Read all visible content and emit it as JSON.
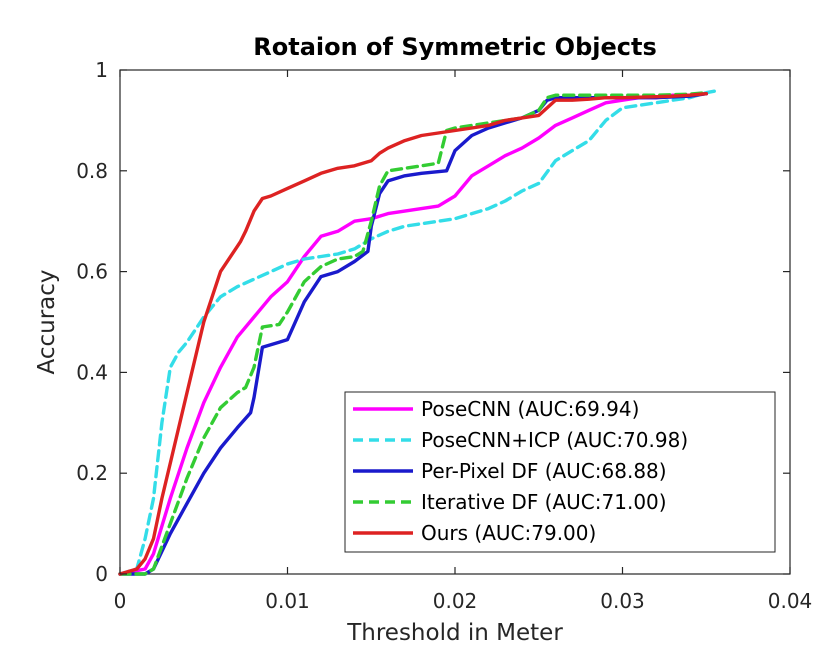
{
  "chart_data": {
    "type": "line",
    "title": "Rotaion of Symmetric Objects",
    "xlabel": "Threshold in Meter",
    "ylabel": "Accuracy",
    "xlim": [
      0,
      0.04
    ],
    "ylim": [
      0,
      1
    ],
    "xticks": [
      0,
      0.01,
      0.02,
      0.03,
      0.04
    ],
    "xtick_labels": [
      "0",
      "0.01",
      "0.02",
      "0.03",
      "0.04"
    ],
    "yticks": [
      0,
      0.2,
      0.4,
      0.6,
      0.8,
      1
    ],
    "ytick_labels": [
      "0",
      "0.2",
      "0.4",
      "0.6",
      "0.8",
      "1"
    ],
    "grid": false,
    "legend_position": "bottom-right",
    "series": [
      {
        "name": "PoseCNN (AUC:69.94)",
        "color": "#ff00ff",
        "dash": "solid",
        "points": [
          [
            0,
            0
          ],
          [
            0.0015,
            0.01
          ],
          [
            0.002,
            0.04
          ],
          [
            0.003,
            0.15
          ],
          [
            0.004,
            0.25
          ],
          [
            0.005,
            0.34
          ],
          [
            0.006,
            0.41
          ],
          [
            0.007,
            0.47
          ],
          [
            0.008,
            0.51
          ],
          [
            0.009,
            0.55
          ],
          [
            0.01,
            0.58
          ],
          [
            0.011,
            0.63
          ],
          [
            0.012,
            0.67
          ],
          [
            0.013,
            0.68
          ],
          [
            0.014,
            0.7
          ],
          [
            0.015,
            0.705
          ],
          [
            0.016,
            0.715
          ],
          [
            0.017,
            0.72
          ],
          [
            0.018,
            0.725
          ],
          [
            0.019,
            0.73
          ],
          [
            0.02,
            0.75
          ],
          [
            0.021,
            0.79
          ],
          [
            0.022,
            0.81
          ],
          [
            0.023,
            0.83
          ],
          [
            0.024,
            0.845
          ],
          [
            0.025,
            0.865
          ],
          [
            0.026,
            0.89
          ],
          [
            0.027,
            0.905
          ],
          [
            0.028,
            0.92
          ],
          [
            0.029,
            0.935
          ],
          [
            0.03,
            0.94
          ],
          [
            0.031,
            0.945
          ],
          [
            0.032,
            0.945
          ],
          [
            0.033,
            0.95
          ],
          [
            0.034,
            0.95
          ],
          [
            0.035,
            0.953
          ]
        ]
      },
      {
        "name": "PoseCNN+ICP (AUC:70.98)",
        "color": "#33dde8",
        "dash": "dashed",
        "points": [
          [
            0,
            0
          ],
          [
            0.001,
            0.01
          ],
          [
            0.0015,
            0.07
          ],
          [
            0.002,
            0.15
          ],
          [
            0.0025,
            0.3
          ],
          [
            0.003,
            0.41
          ],
          [
            0.0035,
            0.44
          ],
          [
            0.004,
            0.46
          ],
          [
            0.005,
            0.51
          ],
          [
            0.006,
            0.55
          ],
          [
            0.007,
            0.57
          ],
          [
            0.008,
            0.585
          ],
          [
            0.009,
            0.6
          ],
          [
            0.01,
            0.615
          ],
          [
            0.011,
            0.625
          ],
          [
            0.012,
            0.63
          ],
          [
            0.013,
            0.635
          ],
          [
            0.014,
            0.645
          ],
          [
            0.015,
            0.665
          ],
          [
            0.016,
            0.68
          ],
          [
            0.017,
            0.69
          ],
          [
            0.018,
            0.695
          ],
          [
            0.019,
            0.7
          ],
          [
            0.02,
            0.705
          ],
          [
            0.021,
            0.715
          ],
          [
            0.022,
            0.725
          ],
          [
            0.023,
            0.74
          ],
          [
            0.024,
            0.76
          ],
          [
            0.025,
            0.775
          ],
          [
            0.026,
            0.82
          ],
          [
            0.027,
            0.84
          ],
          [
            0.028,
            0.86
          ],
          [
            0.029,
            0.9
          ],
          [
            0.03,
            0.925
          ],
          [
            0.031,
            0.93
          ],
          [
            0.032,
            0.935
          ],
          [
            0.033,
            0.94
          ],
          [
            0.034,
            0.945
          ],
          [
            0.035,
            0.955
          ],
          [
            0.0358,
            0.96
          ]
        ]
      },
      {
        "name": "Per-Pixel DF (AUC:68.88)",
        "color": "#1a1acc",
        "dash": "solid",
        "points": [
          [
            0,
            0
          ],
          [
            0.0015,
            0
          ],
          [
            0.002,
            0.01
          ],
          [
            0.003,
            0.08
          ],
          [
            0.004,
            0.14
          ],
          [
            0.005,
            0.2
          ],
          [
            0.006,
            0.25
          ],
          [
            0.007,
            0.29
          ],
          [
            0.0078,
            0.32
          ],
          [
            0.008,
            0.35
          ],
          [
            0.0085,
            0.45
          ],
          [
            0.0095,
            0.46
          ],
          [
            0.01,
            0.465
          ],
          [
            0.011,
            0.54
          ],
          [
            0.012,
            0.59
          ],
          [
            0.013,
            0.6
          ],
          [
            0.014,
            0.62
          ],
          [
            0.0148,
            0.64
          ],
          [
            0.015,
            0.69
          ],
          [
            0.0155,
            0.755
          ],
          [
            0.016,
            0.78
          ],
          [
            0.017,
            0.79
          ],
          [
            0.018,
            0.795
          ],
          [
            0.0195,
            0.8
          ],
          [
            0.02,
            0.84
          ],
          [
            0.021,
            0.87
          ],
          [
            0.022,
            0.885
          ],
          [
            0.023,
            0.895
          ],
          [
            0.024,
            0.905
          ],
          [
            0.025,
            0.92
          ],
          [
            0.0255,
            0.94
          ],
          [
            0.026,
            0.945
          ],
          [
            0.028,
            0.945
          ],
          [
            0.03,
            0.945
          ],
          [
            0.032,
            0.945
          ],
          [
            0.034,
            0.948
          ],
          [
            0.035,
            0.953
          ]
        ]
      },
      {
        "name": "Iterative DF (AUC:71.00)",
        "color": "#33cc33",
        "dash": "dashed",
        "points": [
          [
            0,
            0
          ],
          [
            0.0015,
            0
          ],
          [
            0.002,
            0.01
          ],
          [
            0.003,
            0.1
          ],
          [
            0.004,
            0.19
          ],
          [
            0.005,
            0.27
          ],
          [
            0.006,
            0.33
          ],
          [
            0.007,
            0.36
          ],
          [
            0.0075,
            0.37
          ],
          [
            0.008,
            0.41
          ],
          [
            0.0085,
            0.49
          ],
          [
            0.0095,
            0.495
          ],
          [
            0.01,
            0.52
          ],
          [
            0.011,
            0.58
          ],
          [
            0.012,
            0.61
          ],
          [
            0.013,
            0.625
          ],
          [
            0.014,
            0.63
          ],
          [
            0.0145,
            0.64
          ],
          [
            0.015,
            0.7
          ],
          [
            0.0155,
            0.77
          ],
          [
            0.016,
            0.8
          ],
          [
            0.017,
            0.805
          ],
          [
            0.018,
            0.81
          ],
          [
            0.019,
            0.815
          ],
          [
            0.0195,
            0.88
          ],
          [
            0.02,
            0.885
          ],
          [
            0.021,
            0.89
          ],
          [
            0.022,
            0.895
          ],
          [
            0.024,
            0.905
          ],
          [
            0.025,
            0.92
          ],
          [
            0.0255,
            0.945
          ],
          [
            0.026,
            0.95
          ],
          [
            0.028,
            0.95
          ],
          [
            0.03,
            0.95
          ],
          [
            0.032,
            0.95
          ],
          [
            0.034,
            0.952
          ],
          [
            0.035,
            0.955
          ]
        ]
      },
      {
        "name": "Ours (AUC:79.00)",
        "color": "#dd2222",
        "dash": "solid",
        "points": [
          [
            0,
            0
          ],
          [
            0.001,
            0.01
          ],
          [
            0.0015,
            0.03
          ],
          [
            0.002,
            0.07
          ],
          [
            0.0025,
            0.15
          ],
          [
            0.003,
            0.22
          ],
          [
            0.004,
            0.36
          ],
          [
            0.005,
            0.5
          ],
          [
            0.006,
            0.6
          ],
          [
            0.007,
            0.65
          ],
          [
            0.0072,
            0.66
          ],
          [
            0.0075,
            0.68
          ],
          [
            0.008,
            0.72
          ],
          [
            0.0085,
            0.745
          ],
          [
            0.009,
            0.75
          ],
          [
            0.01,
            0.765
          ],
          [
            0.011,
            0.78
          ],
          [
            0.012,
            0.795
          ],
          [
            0.013,
            0.805
          ],
          [
            0.014,
            0.81
          ],
          [
            0.015,
            0.82
          ],
          [
            0.0155,
            0.835
          ],
          [
            0.016,
            0.845
          ],
          [
            0.017,
            0.86
          ],
          [
            0.018,
            0.87
          ],
          [
            0.019,
            0.875
          ],
          [
            0.02,
            0.88
          ],
          [
            0.021,
            0.885
          ],
          [
            0.022,
            0.89
          ],
          [
            0.023,
            0.9
          ],
          [
            0.024,
            0.905
          ],
          [
            0.025,
            0.91
          ],
          [
            0.026,
            0.94
          ],
          [
            0.027,
            0.94
          ],
          [
            0.028,
            0.942
          ],
          [
            0.029,
            0.945
          ],
          [
            0.03,
            0.945
          ],
          [
            0.031,
            0.946
          ],
          [
            0.032,
            0.947
          ],
          [
            0.033,
            0.948
          ],
          [
            0.034,
            0.95
          ],
          [
            0.035,
            0.953
          ]
        ]
      }
    ]
  }
}
